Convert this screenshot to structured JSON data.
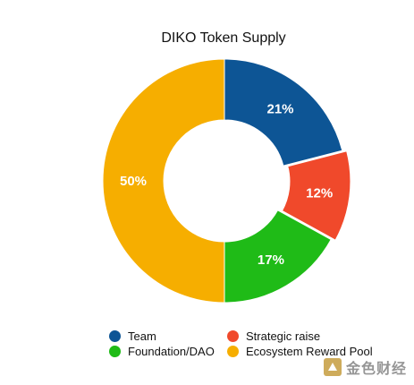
{
  "chart_data": {
    "type": "pie",
    "title": "DIKO Token Supply",
    "categories": [
      "Team",
      "Strategic raise",
      "Foundation/DAO",
      "Ecosystem Reward Pool"
    ],
    "values": [
      21,
      12,
      17,
      50
    ],
    "labels": [
      "21%",
      "12%",
      "17%",
      "50%"
    ],
    "colors": [
      "#0d5595",
      "#f0492b",
      "#1fbb17",
      "#f6ae00"
    ],
    "legend_position": "bottom",
    "donut": true
  },
  "legend": {
    "items": [
      {
        "label": "Team",
        "color": "#0d5595"
      },
      {
        "label": "Strategic raise",
        "color": "#f0492b"
      },
      {
        "label": "Foundation/DAO",
        "color": "#1fbb17"
      },
      {
        "label": "Ecosystem Reward Pool",
        "color": "#f6ae00"
      }
    ]
  },
  "watermark": {
    "text": "金色财经"
  }
}
